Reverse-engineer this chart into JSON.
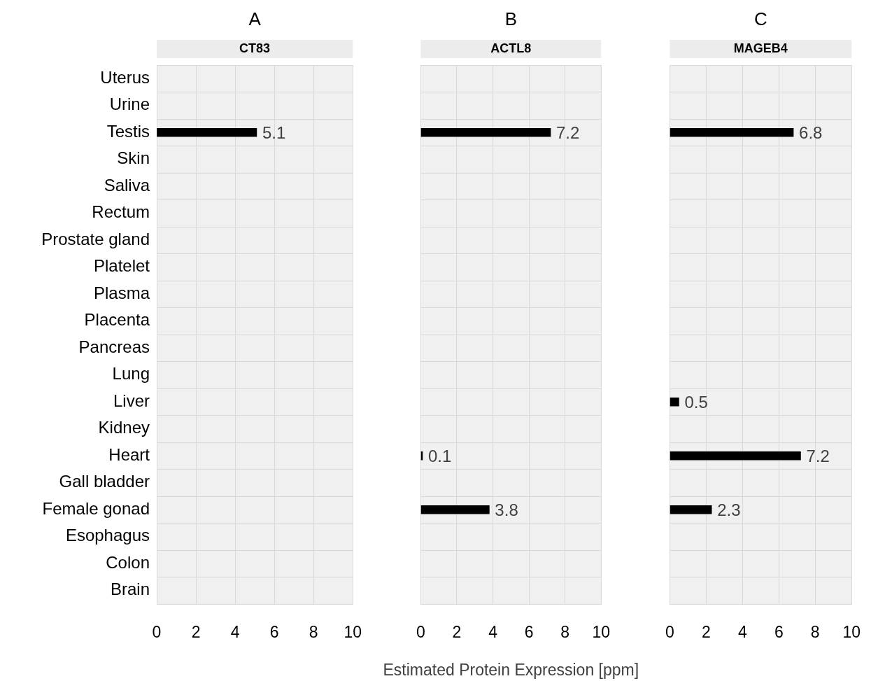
{
  "chart_data": [
    {
      "type": "bar",
      "orientation": "horizontal",
      "title": "A",
      "subtitle": "CT83",
      "categories": [
        "Uterus",
        "Urine",
        "Testis",
        "Skin",
        "Saliva",
        "Rectum",
        "Prostate gland",
        "Platelet",
        "Plasma",
        "Placenta",
        "Pancreas",
        "Lung",
        "Liver",
        "Kidney",
        "Heart",
        "Gall bladder",
        "Female gonad",
        "Esophagus",
        "Colon",
        "Brain"
      ],
      "values": [
        null,
        null,
        5.1,
        null,
        null,
        null,
        null,
        null,
        null,
        null,
        null,
        null,
        null,
        null,
        null,
        null,
        null,
        null,
        null,
        null
      ],
      "color": "#000000",
      "xlim": [
        0,
        10
      ],
      "xticks": [
        0,
        2,
        4,
        6,
        8,
        10
      ],
      "grid": true,
      "data_labels": true
    },
    {
      "type": "bar",
      "orientation": "horizontal",
      "title": "B",
      "subtitle": "ACTL8",
      "xlabel": "Estimated Protein Expression [ppm]",
      "values": [
        null,
        null,
        7.2,
        null,
        null,
        null,
        null,
        null,
        null,
        null,
        null,
        null,
        null,
        null,
        0.1,
        null,
        3.8,
        null,
        null,
        null
      ],
      "color": "#000000",
      "xlim": [
        0,
        10
      ],
      "xticks": [
        0,
        2,
        4,
        6,
        8,
        10
      ],
      "grid": true,
      "data_labels": true,
      "tick_labels": "x"
    },
    {
      "type": "bar",
      "orientation": "horizontal",
      "title": "C",
      "subtitle": "MAGEB4",
      "values": [
        null,
        null,
        6.8,
        null,
        null,
        null,
        null,
        null,
        null,
        null,
        null,
        null,
        0.5,
        null,
        7.2,
        null,
        2.3,
        null,
        null,
        null
      ],
      "color": "#000000",
      "xlim": [
        0,
        10
      ],
      "xticks": [
        0,
        2,
        4,
        6,
        8,
        10
      ],
      "grid": true,
      "data_labels": true,
      "tick_labels": "x"
    }
  ]
}
